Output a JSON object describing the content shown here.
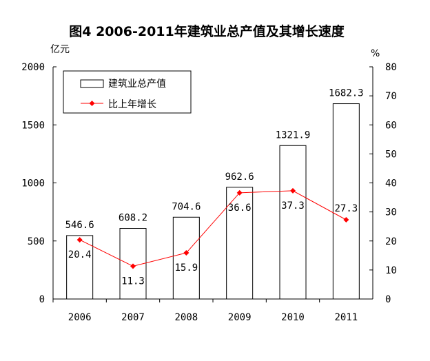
{
  "chart_data": {
    "type": "bar+line",
    "title": "图4 2006-2011年建筑业总产值及其增长速度",
    "ylabel_left": "亿元",
    "ylabel_right": "%",
    "categories": [
      "2006",
      "2007",
      "2008",
      "2009",
      "2010",
      "2011"
    ],
    "ylim_left": [
      0,
      2000
    ],
    "yticks_left": [
      "0",
      "500",
      "1000",
      "1500",
      "2000"
    ],
    "ylim_right": [
      0,
      80
    ],
    "yticks_right": [
      "0",
      "10",
      "20",
      "30",
      "40",
      "50",
      "60",
      "70",
      "80"
    ],
    "grid": false,
    "legend_position": "top-left",
    "series": [
      {
        "name": "建筑业总产值",
        "type": "bar",
        "axis": "left",
        "values": [
          546.6,
          608.2,
          704.6,
          962.6,
          1321.9,
          1682.3
        ],
        "labels": [
          "546.6",
          "608.2",
          "704.6",
          "962.6",
          "1321.9",
          "1682.3"
        ],
        "color": "#ffffff",
        "stroke": "#000000"
      },
      {
        "name": "比上年增长",
        "type": "line",
        "axis": "right",
        "values": [
          20.4,
          11.3,
          15.9,
          36.6,
          37.3,
          27.3
        ],
        "labels": [
          "20.4",
          "11.3",
          "15.9",
          "36.6",
          "37.3",
          "27.3"
        ],
        "color": "#ff0000"
      }
    ]
  }
}
